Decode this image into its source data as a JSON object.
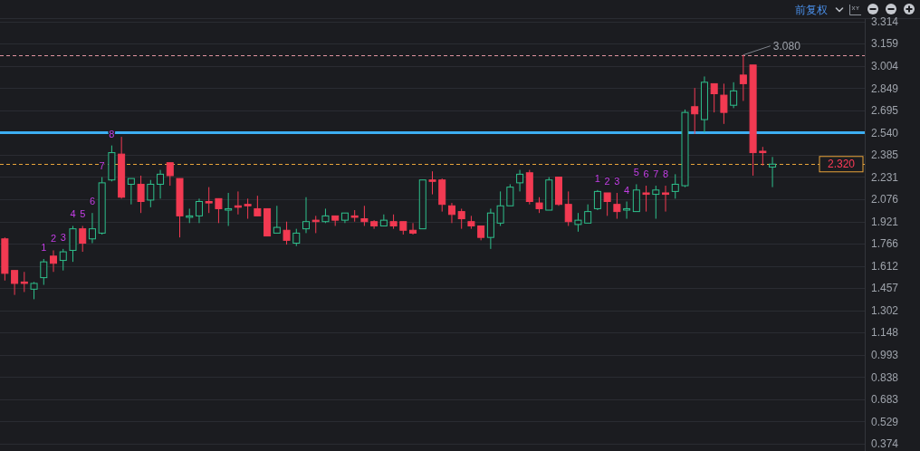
{
  "chart_data": {
    "type": "candlestick",
    "categories": [
      null,
      null,
      null,
      null,
      null,
      null,
      null,
      null,
      null,
      null,
      null,
      null,
      null,
      null,
      null,
      null,
      null,
      null,
      null,
      null,
      null,
      null,
      null,
      null,
      null,
      null,
      null,
      null,
      null,
      null,
      null,
      null,
      null,
      null,
      null,
      null,
      null,
      null,
      null,
      null,
      null,
      null,
      null,
      null,
      null,
      null,
      null,
      null,
      null,
      null,
      null,
      null,
      null,
      null,
      null,
      null,
      null,
      null,
      null,
      null,
      null,
      null,
      null,
      null,
      null,
      null,
      null,
      null,
      null,
      null,
      null,
      null,
      null,
      null,
      null,
      null,
      null,
      null,
      null,
      null,
      null,
      null,
      null,
      null,
      null,
      null,
      null,
      null,
      null
    ],
    "ohlc": [
      [
        1.8,
        1.81,
        1.51,
        1.56
      ],
      [
        1.58,
        1.58,
        1.41,
        1.49
      ],
      [
        1.5,
        1.57,
        1.43,
        1.49
      ],
      [
        1.45,
        1.5,
        1.38,
        1.49
      ],
      [
        1.53,
        1.66,
        1.48,
        1.64
      ],
      [
        1.68,
        1.72,
        1.57,
        1.63
      ],
      [
        1.65,
        1.73,
        1.58,
        1.71
      ],
      [
        1.72,
        1.89,
        1.64,
        1.87
      ],
      [
        1.87,
        1.89,
        1.71,
        1.77
      ],
      [
        1.8,
        1.98,
        1.77,
        1.87
      ],
      [
        1.84,
        2.23,
        1.83,
        2.19
      ],
      [
        2.21,
        2.45,
        2.2,
        2.4
      ],
      [
        2.39,
        2.51,
        2.08,
        2.09
      ],
      [
        2.18,
        2.22,
        2.04,
        2.22
      ],
      [
        2.18,
        2.24,
        1.98,
        2.06
      ],
      [
        2.07,
        2.21,
        2.02,
        2.18
      ],
      [
        2.18,
        2.28,
        2.08,
        2.25
      ],
      [
        2.33,
        2.33,
        2.17,
        2.24
      ],
      [
        2.22,
        2.22,
        1.81,
        1.96
      ],
      [
        1.95,
        2.01,
        1.91,
        1.96
      ],
      [
        1.96,
        2.08,
        1.91,
        2.06
      ],
      [
        2.06,
        2.16,
        1.98,
        2.05
      ],
      [
        2.08,
        2.08,
        1.91,
        2.01
      ],
      [
        2.0,
        2.12,
        1.89,
        2.01
      ],
      [
        2.03,
        2.13,
        1.97,
        2.02
      ],
      [
        2.04,
        2.08,
        1.94,
        2.03
      ],
      [
        2.01,
        2.1,
        1.96,
        1.96
      ],
      [
        2.01,
        2.01,
        1.82,
        1.82
      ],
      [
        1.84,
        2.03,
        1.84,
        1.88
      ],
      [
        1.86,
        1.92,
        1.76,
        1.79
      ],
      [
        1.77,
        1.87,
        1.75,
        1.84
      ],
      [
        1.87,
        2.09,
        1.84,
        1.92
      ],
      [
        1.93,
        1.96,
        1.84,
        1.92
      ],
      [
        1.92,
        2.01,
        1.91,
        1.96
      ],
      [
        1.96,
        1.96,
        1.89,
        1.93
      ],
      [
        1.93,
        1.98,
        1.91,
        1.98
      ],
      [
        1.96,
        2.0,
        1.92,
        1.95
      ],
      [
        1.94,
        2.03,
        1.89,
        1.92
      ],
      [
        1.92,
        1.93,
        1.87,
        1.89
      ],
      [
        1.89,
        1.97,
        1.89,
        1.93
      ],
      [
        1.92,
        1.97,
        1.87,
        1.89
      ],
      [
        1.92,
        1.92,
        1.83,
        1.86
      ],
      [
        1.86,
        1.91,
        1.83,
        1.84
      ],
      [
        1.87,
        2.21,
        1.87,
        2.21
      ],
      [
        2.21,
        2.27,
        2.11,
        2.2
      ],
      [
        2.21,
        2.22,
        1.99,
        2.04
      ],
      [
        2.03,
        2.05,
        1.91,
        1.97
      ],
      [
        1.99,
        2.01,
        1.87,
        1.94
      ],
      [
        1.92,
        1.96,
        1.87,
        1.89
      ],
      [
        1.89,
        1.89,
        1.79,
        1.81
      ],
      [
        1.81,
        2.01,
        1.73,
        1.98
      ],
      [
        1.91,
        2.13,
        1.89,
        2.03
      ],
      [
        2.03,
        2.18,
        2.03,
        2.16
      ],
      [
        2.19,
        2.28,
        2.13,
        2.25
      ],
      [
        2.26,
        2.28,
        2.04,
        2.06
      ],
      [
        2.05,
        2.09,
        1.98,
        2.01
      ],
      [
        2.0,
        2.23,
        2.0,
        2.21
      ],
      [
        2.23,
        2.23,
        2.03,
        2.04
      ],
      [
        2.04,
        2.13,
        1.89,
        1.92
      ],
      [
        1.9,
        1.98,
        1.85,
        1.93
      ],
      [
        1.91,
        2.04,
        1.91,
        1.99
      ],
      [
        2.01,
        2.14,
        2.0,
        2.13
      ],
      [
        2.12,
        2.12,
        1.96,
        2.06
      ],
      [
        2.04,
        2.12,
        1.94,
        1.99
      ],
      [
        2.0,
        2.06,
        1.94,
        2.01
      ],
      [
        1.99,
        2.18,
        1.99,
        2.14
      ],
      [
        2.12,
        2.17,
        1.99,
        2.11
      ],
      [
        2.11,
        2.17,
        1.94,
        2.14
      ],
      [
        2.12,
        2.17,
        1.99,
        2.11
      ],
      [
        2.13,
        2.25,
        2.08,
        2.18
      ],
      [
        2.17,
        2.7,
        2.16,
        2.68
      ],
      [
        2.72,
        2.85,
        2.53,
        2.67
      ],
      [
        2.63,
        2.93,
        2.54,
        2.89
      ],
      [
        2.88,
        2.88,
        2.68,
        2.81
      ],
      [
        2.8,
        2.88,
        2.6,
        2.68
      ],
      [
        2.73,
        2.89,
        2.71,
        2.83
      ],
      [
        2.94,
        3.08,
        2.76,
        2.88
      ],
      [
        3.01,
        3.01,
        2.24,
        2.4
      ],
      [
        2.41,
        2.44,
        2.31,
        2.4
      ],
      [
        2.3,
        2.37,
        2.16,
        2.32
      ],
      null,
      null,
      null,
      null,
      null,
      null,
      null,
      null,
      null
    ],
    "colors": [
      "#f23a52",
      "#f23a52",
      "#f23a52",
      "#2ec08c",
      "#2ec08c",
      "#f23a52",
      "#2ec08c",
      "#2ec08c",
      "#f23a52",
      "#2ec08c",
      "#2ec08c",
      "#2ec08c",
      "#f23a52",
      "#2ec08c",
      "#f23a52",
      "#2ec08c",
      "#2ec08c",
      "#f23a52",
      "#f23a52",
      "#2ec08c",
      "#2ec08c",
      "#f23a52",
      "#f23a52",
      "#2ec08c",
      "#f23a52",
      "#f23a52",
      "#f23a52",
      "#f23a52",
      "#2ec08c",
      "#f23a52",
      "#2ec08c",
      "#2ec08c",
      "#f23a52",
      "#2ec08c",
      "#f23a52",
      "#2ec08c",
      "#f23a52",
      "#f23a52",
      "#f23a52",
      "#2ec08c",
      "#f23a52",
      "#f23a52",
      "#f23a52",
      "#2ec08c",
      "#f23a52",
      "#f23a52",
      "#f23a52",
      "#f23a52",
      "#f23a52",
      "#f23a52",
      "#2ec08c",
      "#2ec08c",
      "#2ec08c",
      "#2ec08c",
      "#f23a52",
      "#f23a52",
      "#2ec08c",
      "#f23a52",
      "#f23a52",
      "#2ec08c",
      "#2ec08c",
      "#2ec08c",
      "#f23a52",
      "#f23a52",
      "#2ec08c",
      "#2ec08c",
      "#f23a52",
      "#2ec08c",
      "#f23a52",
      "#2ec08c",
      "#2ec08c",
      "#f23a52",
      "#2ec08c",
      "#f23a52",
      "#f23a52",
      "#2ec08c",
      "#f23a52",
      "#f23a52",
      "#f23a52",
      "#2ec08c",
      null,
      null,
      null,
      null,
      null,
      null,
      null,
      null,
      null
    ],
    "value_labels": [
      null,
      null,
      null,
      null,
      "1",
      "2",
      "3",
      "4",
      "5",
      "6",
      "7",
      "8",
      null,
      null,
      null,
      null,
      null,
      null,
      null,
      null,
      null,
      null,
      null,
      null,
      null,
      null,
      null,
      null,
      null,
      null,
      null,
      null,
      null,
      null,
      null,
      null,
      null,
      null,
      null,
      null,
      null,
      null,
      null,
      null,
      null,
      null,
      null,
      null,
      null,
      null,
      null,
      null,
      null,
      null,
      null,
      null,
      null,
      null,
      null,
      null,
      null,
      "1",
      "2",
      "3",
      "4",
      "5",
      "6",
      "7",
      "8",
      null,
      null,
      null,
      null,
      null,
      null,
      null,
      null,
      null,
      null,
      null,
      null,
      null,
      null,
      null,
      null,
      null,
      null,
      null,
      null
    ],
    "ylim": [
      0.33,
      3.33
    ],
    "yticks": [
      0.374,
      0.529,
      0.683,
      0.838,
      0.993,
      1.148,
      1.302,
      1.457,
      1.612,
      1.766,
      1.921,
      2.076,
      2.231,
      2.385,
      {
        "value": 2.54,
        "label": "2.540"
      },
      2.695,
      2.849,
      3.004,
      3.159,
      3.314
    ],
    "grid": "y",
    "tick_labels": "y",
    "ref_lines": [
      {
        "axis": "y",
        "value": 3.08,
        "color": "#e0949f",
        "line_style": "dashed"
      },
      {
        "axis": "y",
        "value": 2.54,
        "color": "#3daef2",
        "line_style": "solid"
      },
      {
        "axis": "y",
        "value": 2.32,
        "label": "2.320",
        "color": "#e8a33a",
        "line_style": "dashed"
      }
    ],
    "annotations": [
      "前复权",
      {
        "text": "3.080",
        "y": 3.08
      }
    ]
  }
}
